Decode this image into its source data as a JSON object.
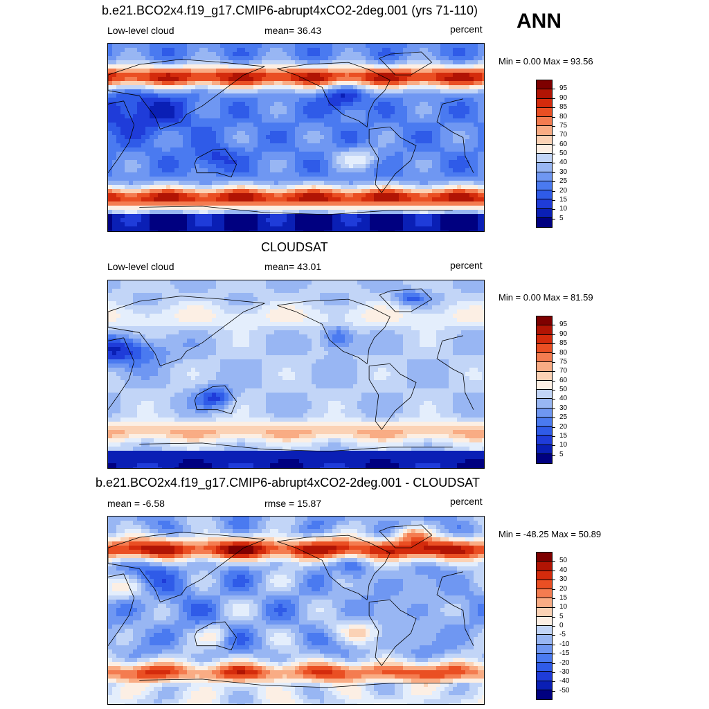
{
  "season": "ANN",
  "panels": [
    {
      "title": "b.e21.BCO2x4.f19_g17.CMIP6-abrupt4xCO2-2deg.001 (yrs 71-110)",
      "left_label": "Low-level cloud",
      "center_label": "mean=  36.43",
      "right_label": "percent",
      "minmax": "Min =   0.00 Max =  93.56",
      "colorbar_labels": [
        "95",
        "90",
        "85",
        "80",
        "75",
        "70",
        "60",
        "50",
        "40",
        "30",
        "25",
        "20",
        "15",
        "10",
        "5"
      ],
      "field": "model"
    },
    {
      "title": "CLOUDSAT",
      "left_label": "Low-level cloud",
      "center_label": "mean=  43.01",
      "right_label": "percent",
      "minmax": "Min =   0.00 Max =  81.59",
      "colorbar_labels": [
        "95",
        "90",
        "85",
        "80",
        "75",
        "70",
        "60",
        "50",
        "40",
        "30",
        "25",
        "20",
        "15",
        "10",
        "5"
      ],
      "field": "obs"
    },
    {
      "title": "b.e21.BCO2x4.f19_g17.CMIP6-abrupt4xCO2-2deg.001 - CLOUDSAT",
      "left_label": "mean =  -6.58",
      "center_label": "rmse =  15.87",
      "right_label": "percent",
      "minmax": "Min = -48.25 Max =  50.89",
      "colorbar_labels": [
        "50",
        "40",
        "30",
        "20",
        "15",
        "10",
        "5",
        "0",
        "-5",
        "-10",
        "-15",
        "-20",
        "-30",
        "-40",
        "-50"
      ],
      "field": "diff"
    }
  ],
  "palette": [
    "#000080",
    "#0a1fb5",
    "#1f3cd9",
    "#2f5be8",
    "#4a7af0",
    "#6f97f2",
    "#98b6f3",
    "#c2d5f7",
    "#e4eefc",
    "#fcefe4",
    "#fbd2b5",
    "#f9ac84",
    "#f47c50",
    "#ea4f23",
    "#d42b0c",
    "#b11404",
    "#7e0000"
  ]
}
